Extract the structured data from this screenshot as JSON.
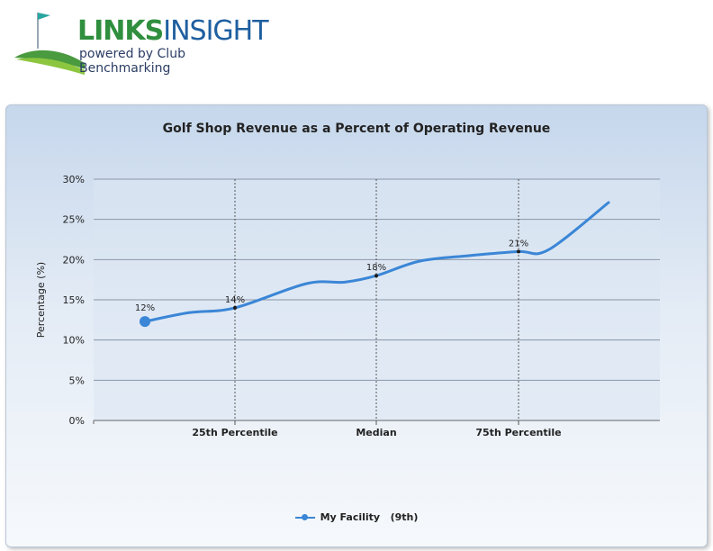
{
  "logo": {
    "word1": "LINKS",
    "word2": "INSIGHT",
    "subtitle": "powered by Club Benchmarking"
  },
  "colors": {
    "series": "#3b86d6",
    "logo_green": "#2f8f3e",
    "logo_blue": "#1f5fa0"
  },
  "chart_data": {
    "type": "line",
    "title": "Golf Shop Revenue as a Percent of Operating Revenue",
    "xlabel": "",
    "ylabel": "Percentage (%)",
    "ylim": [
      0,
      30
    ],
    "yticks": [
      "0%",
      "5%",
      "10%",
      "15%",
      "20%",
      "25%",
      "30%"
    ],
    "categories": [
      "25th Percentile",
      "Median",
      "75th Percentile"
    ],
    "grid": true,
    "legend_position": "bottom",
    "series": [
      {
        "name": "My Facility   (9th)",
        "marker_label": "12%",
        "marker_value": 12.3,
        "benchmarks": [
          {
            "category": "25th Percentile",
            "value": 14,
            "label": "14%"
          },
          {
            "category": "Median",
            "value": 18,
            "label": "18%"
          },
          {
            "category": "75th Percentile",
            "value": 21,
            "label": "21%"
          }
        ],
        "curve_values": [
          12.3,
          13.4,
          14.0,
          17.0,
          17.2,
          18.0,
          19.8,
          20.5,
          21.0,
          21.2,
          27.1
        ]
      }
    ]
  }
}
